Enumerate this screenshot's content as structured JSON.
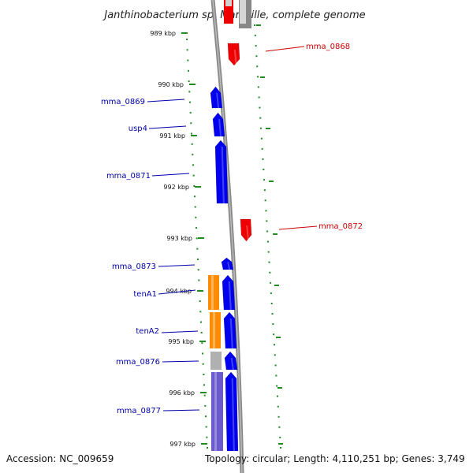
{
  "title": "Janthinobacterium sp. Marseille, complete genome",
  "footer": {
    "accession": "Accession: NC_009659",
    "topology": "Topology: circular; Length: 4,110,251 bp; Genes: 3,749"
  },
  "colors": {
    "forward_gene": "#0000ee",
    "reverse_gene": "#ee0000",
    "label_forward": "#0000aa",
    "label_reverse": "#cc0000",
    "orange_feature": "#ff8c00",
    "purple_feature": "#6a5acd",
    "gray_feature": "#b0b0b0",
    "backbone": "#888888",
    "tick": "#228b22"
  },
  "ticks": [
    "989 kbp",
    "990 kbp",
    "991 kbp",
    "992 kbp",
    "993 kbp",
    "994 kbp",
    "995 kbp",
    "996 kbp",
    "997 kbp"
  ],
  "gene_labels": [
    "mma_0868",
    "mma_0869",
    "usp4",
    "mma_0871",
    "mma_0872",
    "mma_0873",
    "tenA1",
    "tenA2",
    "mma_0876",
    "mma_0877"
  ]
}
